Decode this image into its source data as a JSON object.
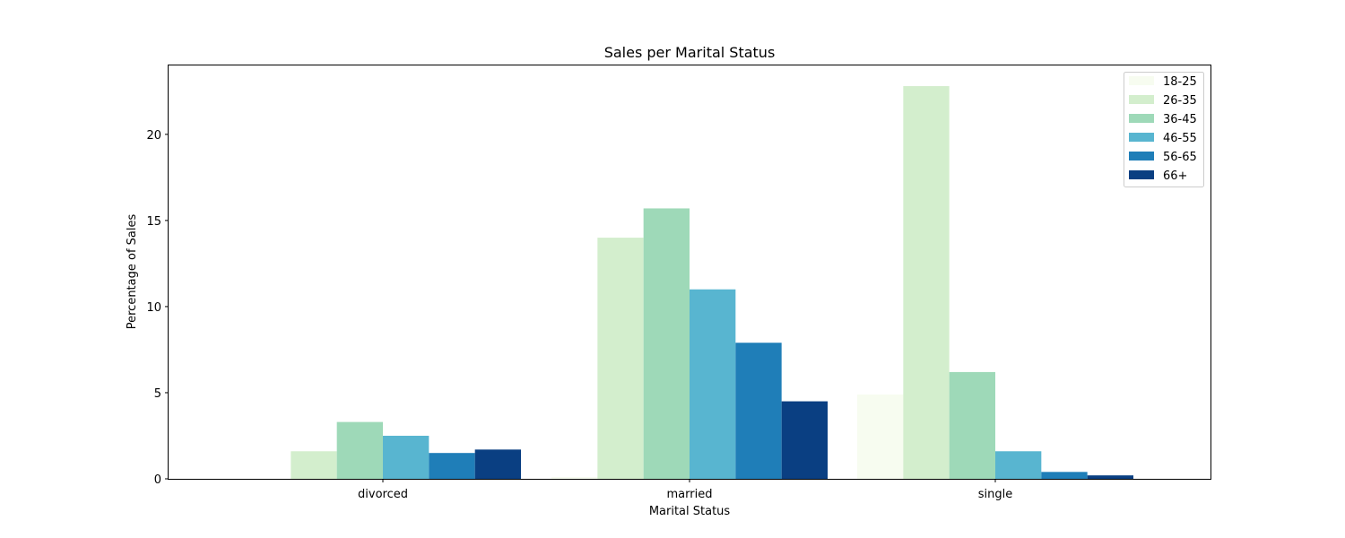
{
  "chart_data": {
    "type": "bar",
    "title": "Sales per Marital Status",
    "xlabel": "Marital Status",
    "ylabel": "Percentage of Sales",
    "categories": [
      "divorced",
      "married",
      "single"
    ],
    "ylim": [
      0,
      24
    ],
    "yticks": [
      0,
      5,
      10,
      15,
      20
    ],
    "grid": false,
    "legend_position": "top-right",
    "series": [
      {
        "name": "18-25",
        "color": "#f7fcf0",
        "values": [
          0.0,
          0.1,
          4.9
        ]
      },
      {
        "name": "26-35",
        "color": "#d3eecd",
        "values": [
          1.6,
          14.0,
          22.8
        ]
      },
      {
        "name": "36-45",
        "color": "#9ed9b8",
        "values": [
          3.3,
          15.7,
          6.2
        ]
      },
      {
        "name": "46-55",
        "color": "#58b5d0",
        "values": [
          2.5,
          11.0,
          1.6
        ]
      },
      {
        "name": "56-65",
        "color": "#1f7eb8",
        "values": [
          1.5,
          7.9,
          0.4
        ]
      },
      {
        "name": "66+",
        "color": "#0a3f82",
        "values": [
          1.7,
          4.5,
          0.2
        ]
      }
    ]
  }
}
